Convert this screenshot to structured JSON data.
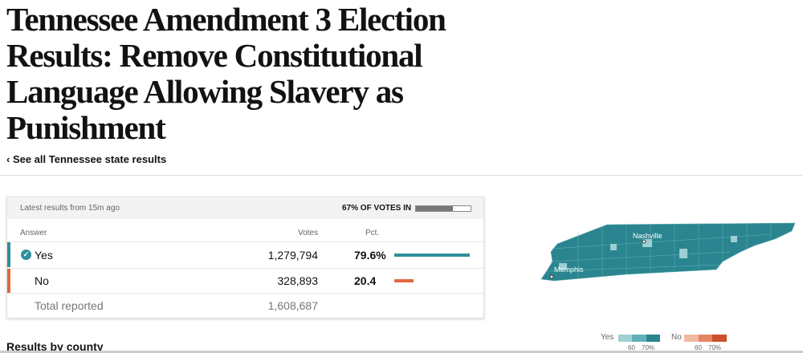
{
  "header": {
    "title": "Tennessee Amendment 3 Election Results: Remove Constitutional Language Allowing Slavery as Punishment",
    "back_link": "‹ See all Tennessee state results"
  },
  "results": {
    "updated": "Latest results from 15m ago",
    "reporting": {
      "value": 67,
      "label": "67% OF VOTES IN"
    },
    "columns": [
      "Answer",
      "Votes",
      "Pct."
    ],
    "rows": [
      {
        "answer": "Yes",
        "votes": "1,279,794",
        "pct": 79.6,
        "pct_label": "79.6%",
        "color": "#2f8f9b"
      },
      {
        "answer": "No",
        "votes": "328,893",
        "pct": 20.4,
        "pct_label": "20.4",
        "color": "#e0683e"
      }
    ],
    "total": {
      "label": "Total reported",
      "votes": "1,608,687"
    }
  },
  "map": {
    "cities": [
      "Nashville",
      "Memphis"
    ],
    "legend": {
      "yes": {
        "label": "Yes",
        "ticks": [
          "60",
          "70%"
        ]
      },
      "no": {
        "label": "No",
        "ticks": [
          "60",
          "70%"
        ]
      }
    }
  },
  "section_title": "Results by county"
}
